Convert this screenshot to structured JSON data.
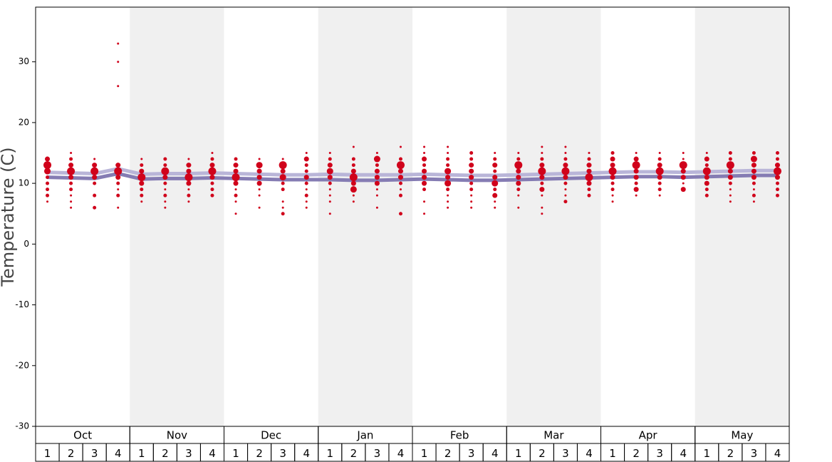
{
  "chart_data": {
    "type": "dotplot",
    "ylabel": "Temperature (C)",
    "ylim": [
      -30,
      39
    ],
    "yticks": [
      -30,
      -20,
      -10,
      0,
      10,
      20,
      30
    ],
    "months": [
      "Oct",
      "Nov",
      "Dec",
      "Jan",
      "Feb",
      "Mar",
      "Apr",
      "May"
    ],
    "categories": [
      "1",
      "2",
      "3",
      "4",
      "1",
      "2",
      "3",
      "4",
      "1",
      "2",
      "3",
      "4",
      "1",
      "2",
      "3",
      "4",
      "1",
      "2",
      "3",
      "4",
      "1",
      "2",
      "3",
      "4",
      "1",
      "2",
      "3",
      "4",
      "1",
      "2",
      "3",
      "4"
    ],
    "dot_color": "#d0021b",
    "dots": [
      {
        "y": [
          14,
          13,
          12,
          11,
          10,
          9,
          8,
          7
        ],
        "n": [
          3,
          5,
          4,
          2,
          2,
          2,
          2,
          1
        ]
      },
      {
        "y": [
          15,
          14,
          13,
          12,
          11,
          10,
          9,
          8,
          7,
          6
        ],
        "n": [
          1,
          2,
          3,
          5,
          3,
          2,
          2,
          1,
          1,
          1
        ]
      },
      {
        "y": [
          14,
          13,
          12,
          11,
          10,
          8,
          6
        ],
        "n": [
          1,
          3,
          5,
          3,
          2,
          2,
          2
        ]
      },
      {
        "y": [
          33,
          30,
          26,
          13,
          12,
          11,
          10,
          9,
          8,
          6
        ],
        "n": [
          1,
          1,
          1,
          3,
          5,
          3,
          2,
          1,
          2,
          1
        ]
      },
      {
        "y": [
          14,
          13,
          12,
          11,
          10,
          9,
          8,
          7
        ],
        "n": [
          1,
          2,
          3,
          5,
          3,
          2,
          2,
          1
        ]
      },
      {
        "y": [
          14,
          13,
          12,
          11,
          10,
          9,
          8,
          7,
          6
        ],
        "n": [
          2,
          2,
          5,
          3,
          2,
          1,
          2,
          1,
          1
        ]
      },
      {
        "y": [
          14,
          13,
          12,
          11,
          10,
          9,
          8,
          7
        ],
        "n": [
          1,
          3,
          3,
          5,
          3,
          1,
          2,
          1
        ]
      },
      {
        "y": [
          15,
          14,
          13,
          12,
          11,
          10,
          9,
          8
        ],
        "n": [
          1,
          2,
          3,
          5,
          3,
          2,
          2,
          2
        ]
      },
      {
        "y": [
          14,
          13,
          12,
          11,
          10,
          9,
          8,
          7,
          5
        ],
        "n": [
          2,
          3,
          3,
          5,
          3,
          1,
          2,
          1,
          1
        ]
      },
      {
        "y": [
          14,
          13,
          12,
          11,
          10,
          9,
          8,
          6
        ],
        "n": [
          1,
          4,
          3,
          3,
          3,
          1,
          1,
          1
        ]
      },
      {
        "y": [
          14,
          13,
          12,
          11,
          10,
          9,
          7,
          6,
          5
        ],
        "n": [
          1,
          5,
          3,
          4,
          2,
          2,
          1,
          1,
          2
        ]
      },
      {
        "y": [
          15,
          14,
          13,
          12,
          11,
          10,
          9,
          8,
          7,
          6
        ],
        "n": [
          1,
          3,
          2,
          2,
          3,
          2,
          1,
          2,
          1,
          1
        ]
      },
      {
        "y": [
          15,
          14,
          13,
          12,
          11,
          10,
          9,
          8,
          7,
          5
        ],
        "n": [
          1,
          2,
          3,
          4,
          3,
          2,
          1,
          1,
          1,
          1
        ]
      },
      {
        "y": [
          16,
          14,
          13,
          12,
          11,
          10,
          9,
          8,
          7
        ],
        "n": [
          1,
          2,
          2,
          3,
          5,
          3,
          4,
          1,
          1
        ]
      },
      {
        "y": [
          15,
          14,
          13,
          12,
          11,
          10,
          9,
          8,
          6
        ],
        "n": [
          1,
          4,
          2,
          3,
          3,
          3,
          1,
          1,
          1
        ]
      },
      {
        "y": [
          16,
          14,
          13,
          12,
          11,
          10,
          9,
          8,
          5
        ],
        "n": [
          1,
          2,
          5,
          3,
          3,
          2,
          1,
          2,
          2
        ]
      },
      {
        "y": [
          16,
          15,
          14,
          13,
          12,
          11,
          10,
          9,
          7,
          5
        ],
        "n": [
          1,
          1,
          3,
          2,
          3,
          3,
          3,
          2,
          1,
          1
        ]
      },
      {
        "y": [
          16,
          15,
          14,
          13,
          12,
          11,
          10,
          9,
          8,
          7,
          6
        ],
        "n": [
          1,
          1,
          2,
          2,
          4,
          3,
          4,
          2,
          1,
          1,
          1
        ]
      },
      {
        "y": [
          15,
          14,
          13,
          12,
          11,
          10,
          9,
          8,
          7,
          6
        ],
        "n": [
          2,
          2,
          3,
          3,
          3,
          2,
          2,
          1,
          1,
          1
        ]
      },
      {
        "y": [
          15,
          14,
          13,
          12,
          11,
          10,
          9,
          8,
          7,
          6
        ],
        "n": [
          1,
          2,
          3,
          2,
          3,
          4,
          2,
          3,
          1,
          1
        ]
      },
      {
        "y": [
          15,
          14,
          13,
          12,
          11,
          10,
          9,
          8,
          6
        ],
        "n": [
          1,
          2,
          5,
          3,
          3,
          3,
          2,
          1,
          1
        ]
      },
      {
        "y": [
          16,
          15,
          14,
          13,
          12,
          11,
          10,
          9,
          8,
          6,
          5
        ],
        "n": [
          1,
          1,
          2,
          3,
          5,
          3,
          2,
          3,
          1,
          1,
          1
        ]
      },
      {
        "y": [
          16,
          15,
          14,
          13,
          12,
          11,
          10,
          9,
          8,
          7
        ],
        "n": [
          1,
          1,
          2,
          3,
          5,
          3,
          2,
          1,
          1,
          2
        ]
      },
      {
        "y": [
          15,
          14,
          13,
          12,
          11,
          10,
          9,
          8
        ],
        "n": [
          1,
          2,
          3,
          3,
          5,
          3,
          2,
          2
        ]
      },
      {
        "y": [
          15,
          14,
          13,
          12,
          11,
          10,
          9,
          8,
          7
        ],
        "n": [
          2,
          3,
          3,
          5,
          3,
          2,
          2,
          1,
          1
        ]
      },
      {
        "y": [
          15,
          14,
          13,
          12,
          11,
          10,
          9,
          8
        ],
        "n": [
          1,
          3,
          5,
          3,
          3,
          2,
          3,
          1
        ]
      },
      {
        "y": [
          15,
          14,
          13,
          12,
          11,
          10,
          9,
          8
        ],
        "n": [
          1,
          2,
          3,
          5,
          3,
          2,
          2,
          1
        ]
      },
      {
        "y": [
          15,
          14,
          13,
          12,
          11,
          10,
          9
        ],
        "n": [
          1,
          1,
          5,
          3,
          3,
          1,
          3
        ]
      },
      {
        "y": [
          15,
          14,
          13,
          12,
          11,
          10,
          9,
          8
        ],
        "n": [
          1,
          3,
          2,
          5,
          3,
          3,
          2,
          2
        ]
      },
      {
        "y": [
          15,
          14,
          13,
          12,
          11,
          10,
          9,
          8,
          7
        ],
        "n": [
          2,
          2,
          5,
          3,
          3,
          2,
          1,
          1,
          1
        ]
      },
      {
        "y": [
          15,
          14,
          13,
          12,
          11,
          10,
          9,
          8,
          7
        ],
        "n": [
          2,
          4,
          3,
          3,
          3,
          2,
          1,
          2,
          1
        ]
      },
      {
        "y": [
          15,
          14,
          13,
          12,
          11,
          10,
          9,
          8
        ],
        "n": [
          2,
          2,
          3,
          5,
          3,
          2,
          2,
          2
        ]
      }
    ],
    "lines": [
      {
        "color": "#b9b5d8",
        "values": [
          11.8,
          11.7,
          11.6,
          12.4,
          11.5,
          11.6,
          11.6,
          11.7,
          11.6,
          11.5,
          11.4,
          11.4,
          11.5,
          11.4,
          11.4,
          11.4,
          11.5,
          11.4,
          11.3,
          11.3,
          11.4,
          11.5,
          11.6,
          11.7,
          11.8,
          11.9,
          11.9,
          11.8,
          11.9,
          12.0,
          12.1,
          12.1
        ]
      },
      {
        "color": "#857cb3",
        "values": [
          11.0,
          10.9,
          10.8,
          11.6,
          10.7,
          10.8,
          10.8,
          10.9,
          10.8,
          10.7,
          10.6,
          10.6,
          10.6,
          10.5,
          10.5,
          10.6,
          10.7,
          10.6,
          10.5,
          10.5,
          10.6,
          10.7,
          10.8,
          10.9,
          11.0,
          11.1,
          11.1,
          11.0,
          11.1,
          11.2,
          11.3,
          11.3
        ]
      }
    ]
  }
}
